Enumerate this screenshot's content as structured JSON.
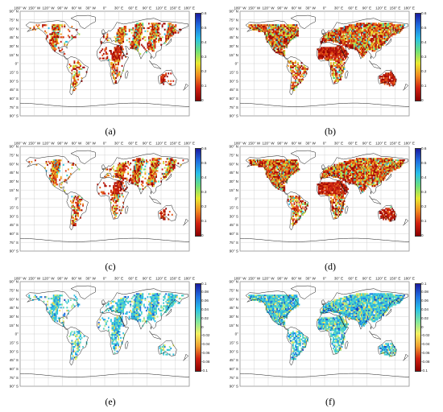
{
  "figure": {
    "lon_ticks": [
      "180° W",
      "150° W",
      "120° W",
      "90° W",
      "60° W",
      "30° W",
      "0°",
      "30° E",
      "60° E",
      "90° E",
      "120° E",
      "150° E",
      "180° E"
    ],
    "lat_ticks": [
      "90° N",
      "75° N",
      "60° N",
      "45° N",
      "30° N",
      "15° N",
      "0°",
      "15° S",
      "30° S",
      "45° S",
      "60° S",
      "75° S",
      "90° S"
    ],
    "panels": [
      {
        "id": "a",
        "label": "(a)",
        "colorbar": [
          "0.6",
          "0.5",
          "0.4",
          "0.3",
          "0.2",
          "0.1",
          "0"
        ],
        "palette": "warm",
        "data_pattern": "swaths"
      },
      {
        "id": "b",
        "label": "(b)",
        "colorbar": [
          "0.6",
          "0.5",
          "0.4",
          "0.3",
          "0.2",
          "0.1",
          "0"
        ],
        "palette": "warm",
        "data_pattern": "full"
      },
      {
        "id": "c",
        "label": "(c)",
        "colorbar": [
          "0.6",
          "0.5",
          "0.4",
          "0.3",
          "0.2",
          "0.1",
          "0"
        ],
        "palette": "warm",
        "data_pattern": "swaths"
      },
      {
        "id": "d",
        "label": "(d)",
        "colorbar": [
          "0.6",
          "0.5",
          "0.4",
          "0.3",
          "0.2",
          "0.1",
          "0"
        ],
        "palette": "warm",
        "data_pattern": "full"
      },
      {
        "id": "e",
        "label": "(e)",
        "colorbar": [
          "0.1",
          "0.08",
          "0.06",
          "0.04",
          "0.02",
          "0",
          "-0.02",
          "-0.04",
          "-0.06",
          "-0.08",
          "-0.1"
        ],
        "palette": "diff",
        "data_pattern": "swaths"
      },
      {
        "id": "f",
        "label": "(f)",
        "colorbar": [
          "0.1",
          "0.08",
          "0.06",
          "0.04",
          "0.02",
          "0",
          "-0.02",
          "-0.04",
          "-0.06",
          "-0.08",
          "-0.1"
        ],
        "palette": "diff",
        "data_pattern": "full"
      }
    ],
    "colors": {
      "warm_gradient": [
        "#1a1aa0",
        "#1f6fe0",
        "#28c0e8",
        "#6ee07a",
        "#e8e830",
        "#f08a20",
        "#d02010",
        "#8a0000"
      ],
      "diff_gradient": [
        "#1a1aa0",
        "#1f6fe0",
        "#28c0e8",
        "#7fe6a0",
        "#f2f060",
        "#f0a030",
        "#d02010",
        "#8a0000"
      ],
      "land_dense": "#c8281e",
      "land_sparse_warm": "#e39a3a",
      "diff_main": "#4fd4a8"
    }
  }
}
